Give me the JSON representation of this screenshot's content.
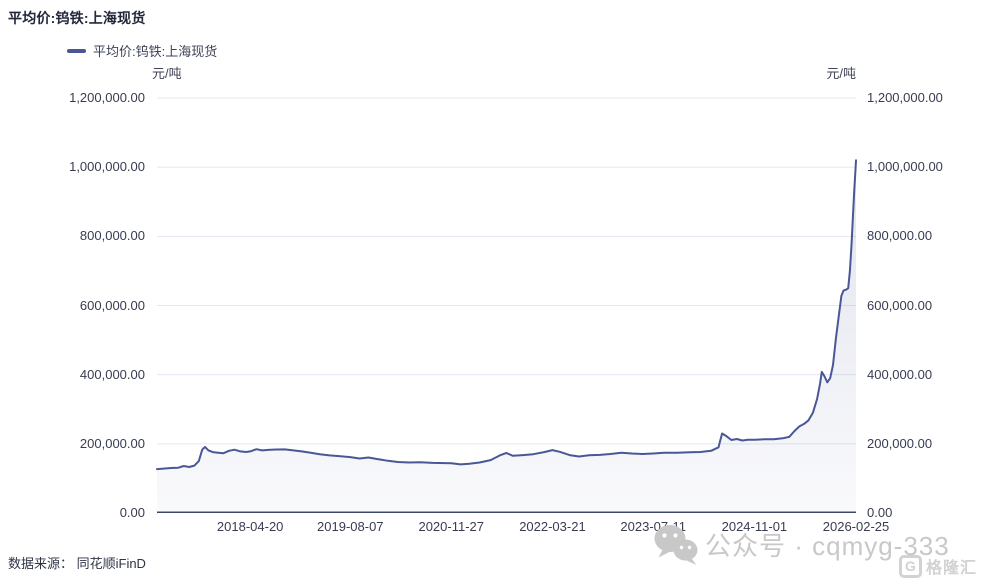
{
  "page": {
    "title": "平均价:钨铁:上海现货"
  },
  "legend": {
    "label": "平均价:钨铁:上海现货"
  },
  "axes": {
    "unit_left": "元/吨",
    "unit_right": "元/吨"
  },
  "footer": {
    "source": "数据来源： 同花顺iFinD"
  },
  "watermark": {
    "wechat_label": "公众号 · cqmyg-333",
    "logo_letter": "G",
    "logo_text": "格隆汇"
  },
  "colors": {
    "line": "#4a5796",
    "grid": "#e5e6f0",
    "axis": "#3c466b",
    "area_top": "rgba(74,87,150,0.16)",
    "area_bottom": "rgba(74,87,150,0.03)",
    "watermark_gray": "#c8c8c8"
  },
  "chart_data": {
    "type": "area",
    "title": "平均价:钨铁:上海现货",
    "series_name": "平均价:钨铁:上海现货",
    "ylabel": "元/吨",
    "ylim": [
      0,
      1200000
    ],
    "grid": true,
    "legend_position": "top-left",
    "y_ticks": [
      {
        "value": 0,
        "label": "0.00"
      },
      {
        "value": 200000,
        "label": "200,000.00"
      },
      {
        "value": 400000,
        "label": "400,000.00"
      },
      {
        "value": 600000,
        "label": "600,000.00"
      },
      {
        "value": 800000,
        "label": "800,000.00"
      },
      {
        "value": 1000000,
        "label": "1,000,000.00"
      },
      {
        "value": 1200000,
        "label": "1,200,000.00"
      }
    ],
    "x_ticks": [
      "2018-04-20",
      "2019-08-07",
      "2020-11-27",
      "2022-03-21",
      "2023-07-11",
      "2024-11-01",
      "2026-02-25"
    ],
    "points": [
      [
        "2017-02-03",
        127000
      ],
      [
        "2017-03-05",
        128500
      ],
      [
        "2017-04-10",
        130000
      ],
      [
        "2017-05-15",
        131000
      ],
      [
        "2017-06-10",
        136000
      ],
      [
        "2017-07-05",
        133000
      ],
      [
        "2017-07-30",
        137000
      ],
      [
        "2017-08-20",
        150000
      ],
      [
        "2017-09-05",
        183000
      ],
      [
        "2017-09-18",
        191000
      ],
      [
        "2017-10-05",
        181000
      ],
      [
        "2017-10-25",
        176000
      ],
      [
        "2017-11-20",
        174500
      ],
      [
        "2017-12-15",
        173000
      ],
      [
        "2018-01-10",
        180000
      ],
      [
        "2018-02-05",
        183000
      ],
      [
        "2018-03-05",
        178000
      ],
      [
        "2018-04-01",
        176500
      ],
      [
        "2018-04-20",
        178000
      ],
      [
        "2018-05-20",
        184500
      ],
      [
        "2018-06-15",
        181000
      ],
      [
        "2018-07-15",
        182500
      ],
      [
        "2018-08-20",
        183500
      ],
      [
        "2018-10-01",
        184000
      ],
      [
        "2018-11-10",
        181000
      ],
      [
        "2018-12-20",
        178000
      ],
      [
        "2019-02-01",
        174000
      ],
      [
        "2019-03-15",
        170000
      ],
      [
        "2019-05-01",
        166500
      ],
      [
        "2019-06-15",
        164500
      ],
      [
        "2019-08-07",
        161500
      ],
      [
        "2019-09-20",
        157500
      ],
      [
        "2019-11-01",
        160500
      ],
      [
        "2019-12-15",
        156000
      ],
      [
        "2020-02-01",
        151000
      ],
      [
        "2020-03-20",
        147500
      ],
      [
        "2020-05-10",
        146000
      ],
      [
        "2020-07-01",
        146500
      ],
      [
        "2020-09-01",
        145000
      ],
      [
        "2020-11-27",
        144000
      ],
      [
        "2021-01-10",
        140500
      ],
      [
        "2021-02-20",
        142500
      ],
      [
        "2021-04-10",
        146000
      ],
      [
        "2021-06-01",
        153000
      ],
      [
        "2021-07-20",
        168000
      ],
      [
        "2021-08-15",
        173500
      ],
      [
        "2021-09-15",
        165500
      ],
      [
        "2021-11-01",
        167500
      ],
      [
        "2021-12-20",
        170000
      ],
      [
        "2022-02-10",
        176000
      ],
      [
        "2022-03-21",
        182000
      ],
      [
        "2022-04-25",
        177000
      ],
      [
        "2022-06-10",
        167500
      ],
      [
        "2022-07-25",
        163500
      ],
      [
        "2022-09-10",
        167000
      ],
      [
        "2022-11-01",
        168000
      ],
      [
        "2022-12-20",
        170500
      ],
      [
        "2023-02-10",
        174500
      ],
      [
        "2023-04-01",
        172000
      ],
      [
        "2023-05-20",
        170500
      ],
      [
        "2023-07-11",
        172000
      ],
      [
        "2023-09-01",
        174000
      ],
      [
        "2023-11-01",
        174500
      ],
      [
        "2024-01-01",
        175500
      ],
      [
        "2024-02-20",
        176500
      ],
      [
        "2024-04-10",
        180000
      ],
      [
        "2024-05-15",
        190000
      ],
      [
        "2024-06-01",
        230000
      ],
      [
        "2024-06-20",
        223000
      ],
      [
        "2024-07-15",
        211000
      ],
      [
        "2024-08-10",
        214000
      ],
      [
        "2024-09-05",
        209500
      ],
      [
        "2024-10-01",
        212000
      ],
      [
        "2024-11-01",
        212000
      ],
      [
        "2024-12-15",
        213000
      ],
      [
        "2025-02-01",
        213500
      ],
      [
        "2025-03-15",
        216000
      ],
      [
        "2025-04-15",
        220000
      ],
      [
        "2025-05-10",
        237000
      ],
      [
        "2025-06-01",
        250000
      ],
      [
        "2025-06-25",
        258000
      ],
      [
        "2025-07-15",
        268000
      ],
      [
        "2025-08-05",
        290000
      ],
      [
        "2025-08-25",
        330000
      ],
      [
        "2025-09-08",
        375000
      ],
      [
        "2025-09-16",
        408000
      ],
      [
        "2025-09-28",
        396000
      ],
      [
        "2025-10-12",
        378000
      ],
      [
        "2025-10-26",
        390000
      ],
      [
        "2025-11-08",
        428000
      ],
      [
        "2025-11-22",
        505000
      ],
      [
        "2025-12-05",
        568000
      ],
      [
        "2025-12-18",
        628000
      ],
      [
        "2025-12-28",
        643000
      ],
      [
        "2026-01-10",
        646000
      ],
      [
        "2026-01-19",
        650000
      ],
      [
        "2026-01-27",
        700000
      ],
      [
        "2026-02-04",
        780000
      ],
      [
        "2026-02-11",
        862000
      ],
      [
        "2026-02-17",
        935000
      ],
      [
        "2026-02-22",
        988000
      ],
      [
        "2026-02-25",
        1020000
      ]
    ]
  }
}
